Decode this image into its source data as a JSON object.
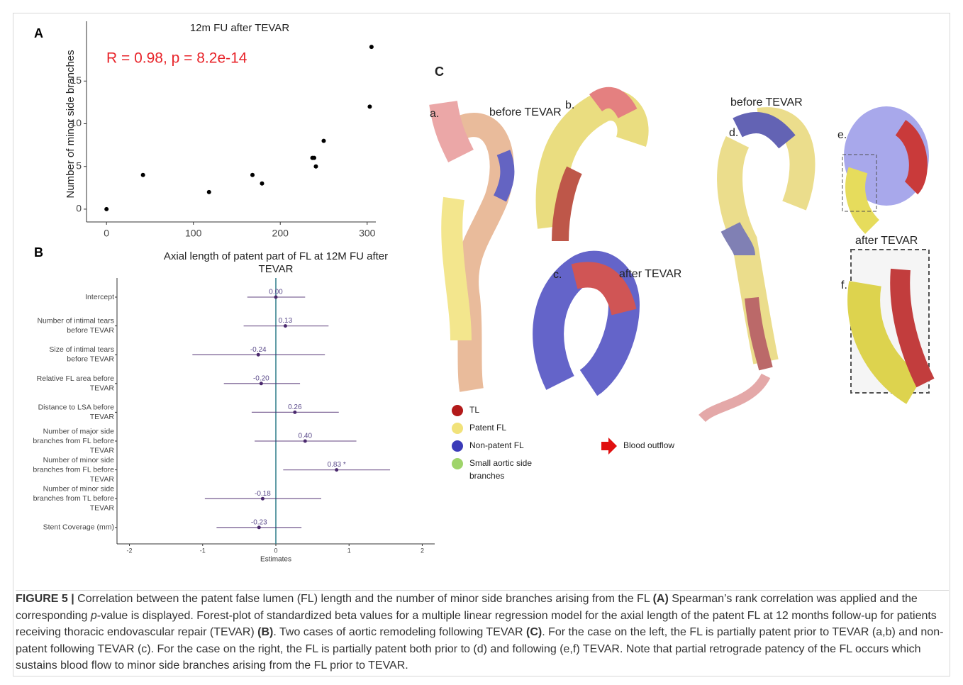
{
  "chart_data": [
    {
      "type": "scatter",
      "label": "A",
      "title": "12m FU after TEVAR",
      "ylabel": "Number of minor side branches",
      "annotation": "R = 0.98, p = 8.2e-14",
      "annotation_color": "#e8242a",
      "x": [
        0,
        42,
        118,
        168,
        179,
        237,
        239,
        241,
        250,
        303,
        305
      ],
      "values": [
        0,
        4,
        2,
        4,
        3,
        6,
        6,
        5,
        8,
        12,
        19
      ],
      "color": "#000000",
      "xlim": [
        -23,
        310
      ],
      "ylim": [
        -1.5,
        22
      ],
      "xticks": [
        0,
        100,
        200,
        300
      ],
      "yticks": [
        0,
        5,
        10,
        15
      ]
    },
    {
      "type": "forest",
      "label": "B",
      "title": [
        "Axial length of patent part of FL at 12M FU after",
        "TEVAR"
      ],
      "xlabel": "Estimates",
      "color": "#4b2a6e",
      "zero_line_color": "#2f7d8a",
      "categories": [
        [
          "Intercept"
        ],
        [
          "Number of intimal tears",
          "before TEVAR"
        ],
        [
          "Size of intimal tears",
          "before TEVAR"
        ],
        [
          "Relative FL area before",
          "TEVAR"
        ],
        [
          "Distance to LSA before",
          "TEVAR"
        ],
        [
          "Number of major side",
          "branches from FL before",
          "TEVAR"
        ],
        [
          "Number of minor side",
          "branches from FL before",
          "TEVAR"
        ],
        [
          "Number of minor side",
          "branches from TL before",
          "TEVAR"
        ],
        [
          "Stent Coverage (mm)"
        ]
      ],
      "values": [
        0.0,
        0.13,
        -0.24,
        -0.2,
        0.26,
        0.4,
        0.83,
        -0.18,
        -0.23
      ],
      "value_labels": [
        "0.00",
        "0.13",
        "-0.24",
        "-0.20",
        "0.26",
        "0.40",
        "0.83 *",
        "-0.18",
        "-0.23"
      ],
      "lower": [
        -0.39,
        -0.44,
        -1.14,
        -0.71,
        -0.33,
        -0.29,
        0.1,
        -0.97,
        -0.81
      ],
      "upper": [
        0.4,
        0.72,
        0.67,
        0.33,
        0.86,
        1.1,
        1.56,
        0.62,
        0.35
      ],
      "xlim": [
        -2.17,
        2.17
      ],
      "xticks": [
        -2,
        -1,
        0,
        1,
        2
      ]
    }
  ],
  "panel_c": {
    "label": "C",
    "a": "a.",
    "b": "b.",
    "c": "c.",
    "d": "d.",
    "e": "e.",
    "f": "f.",
    "before_left": "before TEVAR",
    "after_left": "after TEVAR",
    "before_right": "before TEVAR",
    "after_right": "after TEVAR",
    "legend": [
      {
        "name": [
          "TL"
        ],
        "color": "#b31a1a"
      },
      {
        "name": [
          "Patent FL"
        ],
        "color": "#f1e27a"
      },
      {
        "name": [
          "Non-patent FL"
        ],
        "color": "#3b3bb8"
      },
      {
        "name": [
          "Small aortic side",
          "branches"
        ],
        "color": "#9fd46a"
      }
    ],
    "arrow_legend": "Blood outflow",
    "arrow_color": "#e01010"
  },
  "caption": [
    "FIGURE 5 |",
    " Correlation between the patent false lumen (FL) length and the number of minor side branches arising from the FL ",
    "(A)",
    " Spearman’s rank correlation was applied and the corresponding ",
    "p",
    "-value is displayed. Forest-plot of standardized beta values for a multiple linear regression model for the axial length of the patent FL at 12 months follow-up for patients receiving thoracic endovascular repair (TEVAR) ",
    "(B)",
    ". Two cases of aortic remodeling following TEVAR ",
    "(C)",
    ". For the case on the left, the FL is partially patent prior to TEVAR (a,b) and non-patent following TEVAR (c). For the case on the right, the FL is partially patent both prior to (d) and following (e,f) TEVAR. Note that partial retrograde patency of the FL occurs which sustains blood flow to minor side branches arising from the FL prior to TEVAR."
  ]
}
